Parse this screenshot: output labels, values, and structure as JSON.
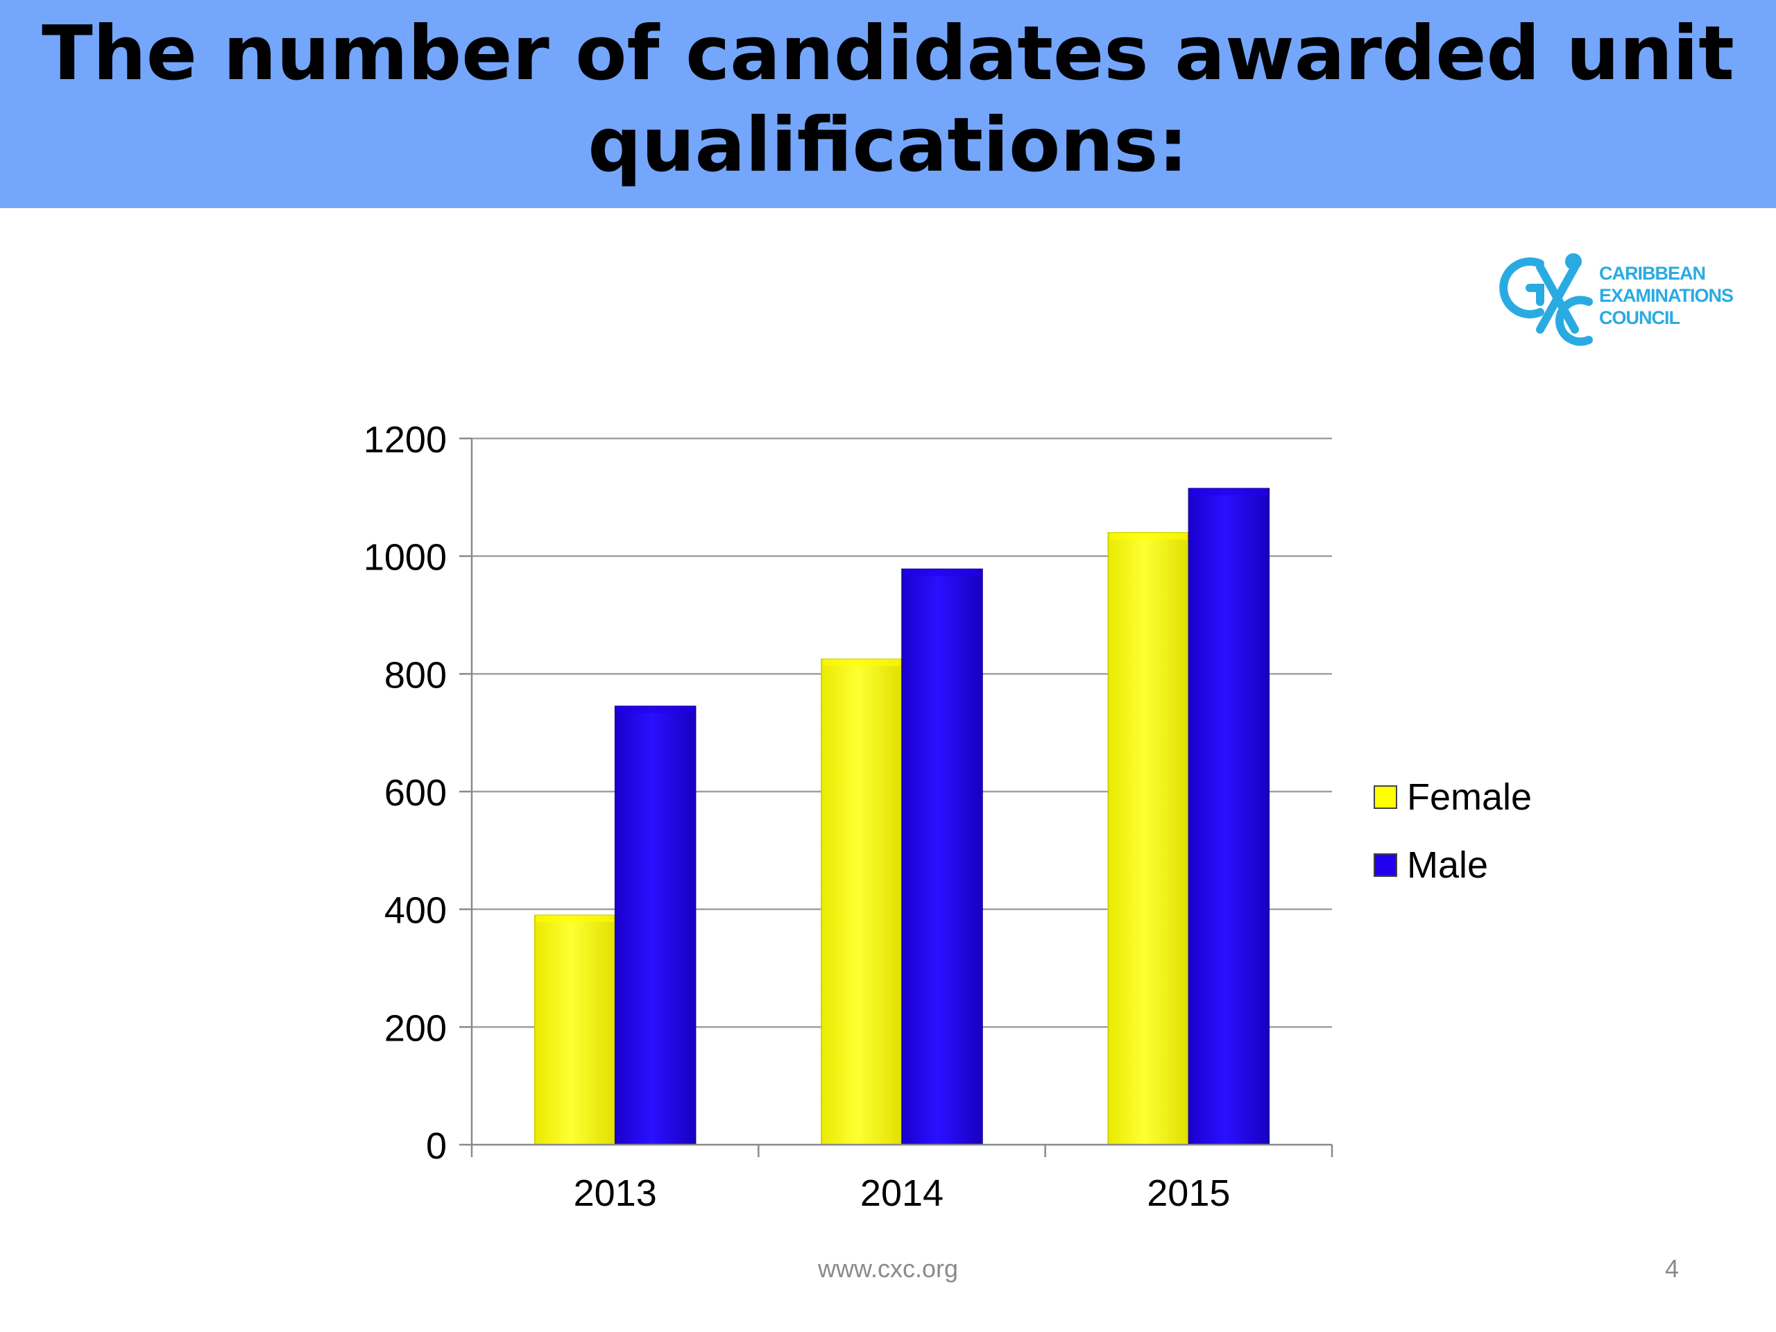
{
  "slide": {
    "title": "The number of candidates awarded unit qualifications:",
    "footer_url": "www.cxc.org",
    "slide_number": "4"
  },
  "logo": {
    "line1": "CARIBBEAN",
    "line2": "EXAMINATIONS",
    "line3": "COUNCIL",
    "color": "#29abe2",
    "icon": "cxc-emblem-icon"
  },
  "colors": {
    "title_band": "#74a6fb",
    "female": "#ffff00",
    "male": "#2200ee"
  },
  "chart_data": {
    "type": "bar",
    "categories": [
      "2013",
      "2014",
      "2015"
    ],
    "series": [
      {
        "name": "Female",
        "values": [
          390,
          825,
          1040
        ]
      },
      {
        "name": "Male",
        "values": [
          745,
          978,
          1115
        ]
      }
    ],
    "yticks": [
      "0",
      "200",
      "400",
      "600",
      "800",
      "1000",
      "1200"
    ],
    "ylim": [
      0,
      1200
    ],
    "grid": true,
    "legend": "right"
  }
}
